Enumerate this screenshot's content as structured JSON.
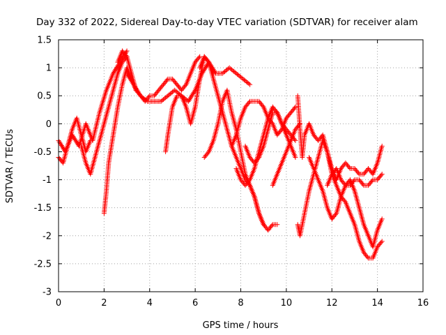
{
  "chart_data": {
    "type": "scatter",
    "title": "Day 332 of 2022, Sidereal Day-to-day VTEC variation (SDTVAR) for receiver alam",
    "xlabel": "GPS time / hours",
    "ylabel": "SDTVAR / TECUs",
    "xlim": [
      0,
      16
    ],
    "ylim": [
      -3,
      1.5
    ],
    "xticks": [
      "0",
      "2",
      "4",
      "6",
      "8",
      "10",
      "12",
      "14",
      "16"
    ],
    "yticks": [
      "1.5",
      "1",
      "0.5",
      "0",
      "-0.5",
      "-1",
      "-1.5",
      "-2",
      "-2.5",
      "-3"
    ],
    "grid": true,
    "marker": "+",
    "color": "#ff0000",
    "series": [
      {
        "name": "s1",
        "x": [
          0.0,
          0.3,
          0.6,
          0.9,
          1.2,
          1.5,
          1.8,
          2.1,
          2.4,
          2.7,
          3.0
        ],
        "y": [
          -0.3,
          -0.5,
          -0.2,
          -0.4,
          0.0,
          -0.3,
          0.2,
          0.6,
          0.9,
          1.1,
          1.3
        ]
      },
      {
        "name": "s2",
        "x": [
          0.0,
          0.2,
          0.4,
          0.6,
          0.8,
          1.0,
          1.2,
          1.4
        ],
        "y": [
          -0.6,
          -0.7,
          -0.4,
          -0.1,
          0.1,
          -0.2,
          -0.5,
          -0.3
        ]
      },
      {
        "name": "s3",
        "x": [
          1.0,
          1.2,
          1.4,
          1.6,
          1.8,
          2.0,
          2.2,
          2.4,
          2.6,
          2.8,
          3.0
        ],
        "y": [
          -0.4,
          -0.7,
          -0.9,
          -0.6,
          -0.3,
          0.0,
          0.3,
          0.6,
          0.9,
          1.1,
          1.2
        ]
      },
      {
        "name": "s4",
        "x": [
          2.0,
          2.1,
          2.2,
          2.4,
          2.6,
          2.8,
          3.0,
          3.2,
          3.4
        ],
        "y": [
          -1.6,
          -1.2,
          -0.7,
          -0.2,
          0.3,
          0.7,
          1.0,
          0.8,
          0.6
        ]
      },
      {
        "name": "s5",
        "x": [
          2.6,
          2.8,
          3.0,
          3.2,
          3.4,
          3.6,
          3.8,
          4.0,
          4.2,
          4.4,
          4.6,
          4.8,
          5.0,
          5.2,
          5.4,
          5.6,
          5.8,
          6.0,
          6.2
        ],
        "y": [
          1.1,
          1.3,
          1.2,
          0.9,
          0.6,
          0.5,
          0.4,
          0.5,
          0.5,
          0.6,
          0.7,
          0.8,
          0.8,
          0.7,
          0.6,
          0.7,
          0.9,
          1.1,
          1.2
        ]
      },
      {
        "name": "s6",
        "x": [
          3.0,
          3.3,
          3.6,
          3.9,
          4.2,
          4.5,
          4.8,
          5.1,
          5.4,
          5.7,
          6.0,
          6.3,
          6.6,
          6.9,
          7.2,
          7.5,
          7.8,
          8.1,
          8.4
        ],
        "y": [
          0.9,
          0.7,
          0.5,
          0.4,
          0.4,
          0.4,
          0.5,
          0.6,
          0.5,
          0.4,
          0.6,
          0.9,
          1.1,
          0.9,
          0.9,
          1.0,
          0.9,
          0.8,
          0.7
        ]
      },
      {
        "name": "s7",
        "x": [
          4.7,
          4.8,
          5.0,
          5.2,
          5.4,
          5.6,
          5.8,
          6.0,
          6.2,
          6.4,
          6.6,
          6.8
        ],
        "y": [
          -0.5,
          -0.2,
          0.3,
          0.5,
          0.5,
          0.3,
          0.0,
          0.3,
          0.8,
          1.2,
          1.1,
          0.9
        ]
      },
      {
        "name": "s8",
        "x": [
          6.4,
          6.6,
          6.8,
          7.0,
          7.2,
          7.4,
          7.6,
          7.8,
          8.0,
          8.2,
          8.4,
          8.6,
          8.8,
          9.0,
          9.2,
          9.4,
          9.6
        ],
        "y": [
          -0.6,
          -0.5,
          -0.3,
          0.0,
          0.4,
          0.6,
          0.2,
          -0.1,
          -0.5,
          -0.9,
          -1.1,
          -1.3,
          -1.6,
          -1.8,
          -1.9,
          -1.8,
          -1.8
        ]
      },
      {
        "name": "s9",
        "x": [
          6.2,
          6.4,
          6.6,
          6.8,
          7.0,
          7.2,
          7.4,
          7.6,
          7.8,
          8.0,
          8.2,
          8.4,
          8.6,
          8.8,
          9.0
        ],
        "y": [
          1.0,
          1.2,
          1.1,
          0.8,
          0.5,
          0.2,
          -0.1,
          -0.4,
          -0.6,
          -0.8,
          -1.0,
          -1.1,
          -1.3,
          -1.6,
          -1.8
        ]
      },
      {
        "name": "s10",
        "x": [
          7.6,
          7.8,
          8.0,
          8.2,
          8.4,
          8.6,
          8.8,
          9.0,
          9.2,
          9.4,
          9.6,
          9.8,
          10.0,
          10.2,
          10.4
        ],
        "y": [
          -0.4,
          -0.2,
          0.1,
          0.3,
          0.4,
          0.4,
          0.4,
          0.3,
          0.1,
          0.0,
          -0.2,
          -0.1,
          0.1,
          0.2,
          0.3
        ]
      },
      {
        "name": "s11",
        "x": [
          7.8,
          8.0,
          8.2,
          8.4,
          8.6,
          8.8,
          9.0,
          9.2,
          9.4,
          9.6,
          9.8,
          10.0,
          10.2,
          10.4
        ],
        "y": [
          -0.8,
          -1.0,
          -1.1,
          -1.0,
          -0.8,
          -0.5,
          -0.2,
          0.1,
          0.3,
          0.2,
          0.0,
          -0.1,
          -0.2,
          -0.3
        ]
      },
      {
        "name": "s12",
        "x": [
          8.2,
          8.4,
          8.6,
          8.8,
          9.0,
          9.2,
          9.4,
          9.6,
          9.8,
          10.0,
          10.2,
          10.4
        ],
        "y": [
          -0.4,
          -0.6,
          -0.7,
          -0.6,
          -0.4,
          -0.1,
          0.2,
          0.2,
          0.0,
          -0.2,
          -0.4,
          -0.6
        ]
      },
      {
        "name": "s13",
        "x": [
          9.4,
          9.6,
          9.8,
          10.0,
          10.2,
          10.4,
          10.6
        ],
        "y": [
          -1.1,
          -0.9,
          -0.7,
          -0.5,
          -0.3,
          -0.1,
          0.0
        ]
      },
      {
        "name": "s14",
        "x": [
          10.5,
          10.6,
          10.7,
          10.8,
          11.0,
          11.2,
          11.4,
          11.6,
          11.8,
          12.0,
          12.2,
          12.4,
          12.6,
          12.8,
          13.0,
          13.2,
          13.4,
          13.6,
          13.8,
          14.0,
          14.2
        ],
        "y": [
          0.5,
          -0.1,
          -0.6,
          -0.2,
          0.0,
          -0.2,
          -0.3,
          -0.2,
          -0.5,
          -0.8,
          -1.0,
          -0.8,
          -0.7,
          -0.8,
          -0.8,
          -0.9,
          -0.9,
          -0.8,
          -0.9,
          -0.7,
          -0.4
        ]
      },
      {
        "name": "s15",
        "x": [
          10.5,
          10.6,
          10.8,
          11.0,
          11.2,
          11.4,
          11.6,
          11.8,
          12.0,
          12.2,
          12.4,
          12.6,
          12.8,
          13.0,
          13.2,
          13.4,
          13.6,
          13.8,
          14.0,
          14.2
        ],
        "y": [
          -1.8,
          -2.0,
          -1.6,
          -1.2,
          -0.9,
          -0.6,
          -0.3,
          -0.5,
          -0.9,
          -1.1,
          -1.3,
          -1.4,
          -1.6,
          -1.8,
          -2.1,
          -2.3,
          -2.4,
          -2.4,
          -2.2,
          -2.1
        ]
      },
      {
        "name": "s16",
        "x": [
          11.0,
          11.2,
          11.4,
          11.6,
          11.8,
          12.0,
          12.2,
          12.4,
          12.6,
          12.8,
          13.0,
          13.2,
          13.4,
          13.6,
          13.8,
          14.0,
          14.2
        ],
        "y": [
          -0.6,
          -0.8,
          -1.0,
          -1.2,
          -1.5,
          -1.7,
          -1.6,
          -1.3,
          -1.1,
          -1.0,
          -1.2,
          -1.5,
          -1.8,
          -2.0,
          -2.2,
          -1.9,
          -1.7
        ]
      },
      {
        "name": "s17",
        "x": [
          11.8,
          12.0,
          12.2,
          12.4,
          12.6,
          12.8,
          13.0,
          13.2,
          13.4,
          13.6,
          13.8,
          14.0,
          14.2
        ],
        "y": [
          -1.1,
          -0.9,
          -0.8,
          -1.0,
          -1.1,
          -1.1,
          -1.0,
          -1.0,
          -1.1,
          -1.1,
          -1.0,
          -1.0,
          -0.9
        ]
      }
    ]
  }
}
